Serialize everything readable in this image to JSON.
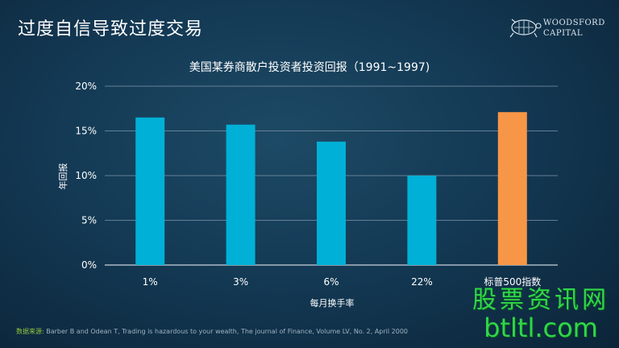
{
  "slide": {
    "title": "过度自信导致过度交易"
  },
  "logo": {
    "line1": "WOODSFORD",
    "line2": "CAPITAL"
  },
  "source": {
    "label": "数据来源:",
    "text": " Barber  B and Odean T, Trading  is hazardous to your wealth,  The journal of Finance, Volume LV, No. 2, April  2000"
  },
  "watermark": {
    "cn": "股票资讯网",
    "en": "btltl.com"
  },
  "colors": {
    "primary_bar": "#00b0d6",
    "highlight_bar": "#f79646",
    "grid": "#7f97aa"
  },
  "chart_data": {
    "type": "bar",
    "title": "美国某券商散户投资者投资回报（1991~1997)",
    "xlabel": "每月换手率",
    "ylabel": "年回报",
    "categories": [
      "1%",
      "3%",
      "6%",
      "22%",
      "标普500指数"
    ],
    "values": [
      16.5,
      15.7,
      13.8,
      10.0,
      17.1
    ],
    "highlight_index": 4,
    "ylim": [
      0,
      20
    ],
    "yticks": [
      0,
      5,
      10,
      15,
      20
    ],
    "ytick_labels": [
      "0%",
      "5%",
      "10%",
      "15%",
      "20%"
    ],
    "grid": true,
    "legend": "none"
  }
}
